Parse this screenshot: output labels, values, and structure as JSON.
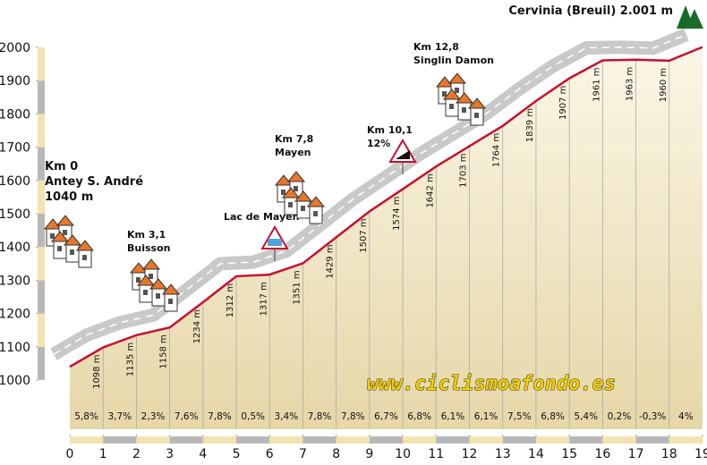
{
  "chart_data": {
    "type": "profile",
    "title": "Cervinia (Breuil) 2.001 m",
    "x": [
      0,
      1,
      2,
      3,
      4,
      5,
      6,
      7,
      8,
      9,
      10,
      11,
      12,
      13,
      14,
      15,
      16,
      17,
      18,
      19
    ],
    "values": [
      1040,
      1098,
      1135,
      1158,
      1234,
      1312,
      1317,
      1351,
      1429,
      1507,
      1574,
      1642,
      1703,
      1764,
      1839,
      1907,
      1961,
      1963,
      1960,
      2001
    ],
    "value_labels": [
      null,
      "1098 m",
      "1135 m",
      "1158 m",
      "1234 m",
      "1312 m",
      "1317 m",
      "1351 m",
      "1429 m",
      "1507 m",
      "1574 m",
      "1642 m",
      "1703 m",
      "1764 m",
      "1839 m",
      "1907 m",
      "1961 m",
      "1963 m",
      "1960 m",
      null
    ],
    "color": "#c8102e",
    "segments": {
      "values": [
        5.8,
        3.7,
        2.3,
        7.6,
        7.8,
        0.5,
        3.4,
        7.8,
        7.8,
        6.7,
        6.8,
        6.1,
        6.1,
        7.5,
        6.8,
        5.4,
        0.2,
        -0.3,
        4
      ],
      "value_labels": [
        "5,8%",
        "3,7%",
        "2,3%",
        "7,6%",
        "7,8%",
        "0,5%",
        "3,4%",
        "7,8%",
        "7,8%",
        "6,7%",
        "6,8%",
        "6,1%",
        "6,1%",
        "7,5%",
        "6,8%",
        "5,4%",
        "0,2%",
        "-0,3%",
        "4%"
      ]
    },
    "xlim": [
      0,
      19
    ],
    "xticks": [
      0,
      1,
      2,
      3,
      4,
      5,
      6,
      7,
      8,
      9,
      10,
      11,
      12,
      13,
      14,
      15,
      16,
      17,
      18,
      19
    ],
    "ylim": [
      1000,
      2000
    ],
    "yticks": [
      1000,
      1100,
      1200,
      1300,
      1400,
      1500,
      1600,
      1700,
      1800,
      1900,
      2000
    ],
    "annotations": {
      "start": [
        "Km 0",
        "Antey S. André",
        "1040 m"
      ],
      "buisson": [
        "Km 3,1",
        "Buisson"
      ],
      "lake": "Lac de Mayen",
      "mayen": [
        "Km 7,8",
        "Mayen"
      ],
      "steep": [
        "Km 10,1",
        "12%"
      ],
      "singlin": [
        "Km 12,8",
        "Singlin Damon"
      ]
    },
    "watermark": "www.ciclismoafondo.es"
  }
}
